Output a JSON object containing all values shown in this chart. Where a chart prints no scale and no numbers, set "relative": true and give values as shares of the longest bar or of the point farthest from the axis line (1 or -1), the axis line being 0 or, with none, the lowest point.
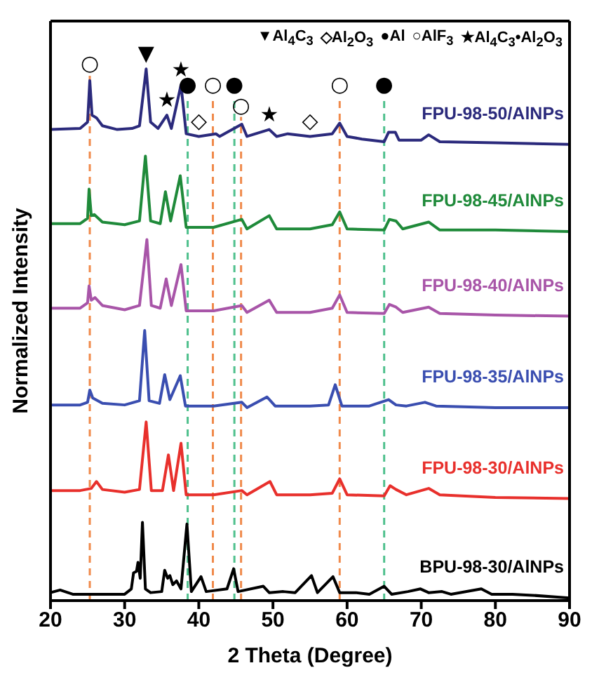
{
  "chart_data": {
    "type": "line",
    "relative": true,
    "xlabel": "2 Theta (Degree)",
    "ylabel": "Normalized Intensity",
    "xlim": [
      20,
      90
    ],
    "xticks": [
      20,
      30,
      40,
      50,
      60,
      70,
      80,
      90
    ],
    "line_style": "solid",
    "series": [
      {
        "name": "FPU-98-50/AlNPs",
        "color": "#2b2a7c",
        "x": [
          20,
          24,
          25,
          25.3,
          25.6,
          26.2,
          27,
          29,
          31,
          32,
          32.9,
          33.5,
          34.5,
          35.7,
          36.3,
          37.6,
          38.3,
          40,
          42.3,
          42.8,
          45.8,
          46.5,
          49.5,
          50.5,
          52,
          55,
          58,
          59,
          60,
          62,
          65,
          65.6,
          66.5,
          67,
          70,
          71,
          72.5,
          80,
          90
        ],
        "values": [
          0.886,
          0.888,
          0.9,
          0.978,
          0.913,
          0.908,
          0.893,
          0.886,
          0.888,
          0.893,
          1,
          0.9,
          0.888,
          0.913,
          0.888,
          0.97,
          0.878,
          0.873,
          0.878,
          0.873,
          0.896,
          0.873,
          0.886,
          0.873,
          0.878,
          0.873,
          0.878,
          0.898,
          0.873,
          0.868,
          0.863,
          0.881,
          0.881,
          0.866,
          0.866,
          0.876,
          0.863,
          0.861,
          0.858
        ]
      },
      {
        "name": "FPU-98-45/AlNPs",
        "color": "#1f8a3a",
        "x": [
          20,
          24,
          25,
          25.2,
          25.5,
          25.9,
          27,
          30,
          32,
          32.8,
          33.5,
          34.8,
          35.5,
          36.2,
          37.5,
          38.3,
          42,
          45.8,
          46.5,
          49.5,
          50.5,
          55,
          58,
          59,
          60,
          65,
          65.7,
          66.6,
          67.5,
          71,
          72.5,
          80,
          90
        ],
        "values": [
          0.709,
          0.709,
          0.719,
          0.774,
          0.724,
          0.726,
          0.712,
          0.707,
          0.714,
          0.836,
          0.714,
          0.709,
          0.769,
          0.714,
          0.799,
          0.702,
          0.702,
          0.717,
          0.699,
          0.724,
          0.699,
          0.699,
          0.707,
          0.731,
          0.699,
          0.697,
          0.717,
          0.714,
          0.699,
          0.712,
          0.697,
          0.697,
          0.694
        ]
      },
      {
        "name": "FPU-98-40/AlNPs",
        "color": "#a855a8",
        "x": [
          20,
          24,
          25,
          25.2,
          25.5,
          26,
          27,
          30,
          32,
          33,
          33.6,
          34.8,
          35.6,
          36.3,
          37.6,
          38.3,
          42,
          45.8,
          46.5,
          49.5,
          50.5,
          55,
          58,
          59,
          60,
          65,
          65.7,
          66.6,
          67.5,
          71,
          72.5,
          80,
          90
        ],
        "values": [
          0.55,
          0.55,
          0.56,
          0.592,
          0.565,
          0.57,
          0.555,
          0.547,
          0.555,
          0.679,
          0.555,
          0.55,
          0.605,
          0.555,
          0.632,
          0.545,
          0.545,
          0.555,
          0.542,
          0.565,
          0.542,
          0.542,
          0.55,
          0.575,
          0.542,
          0.54,
          0.557,
          0.552,
          0.542,
          0.552,
          0.54,
          0.537,
          0.535
        ]
      },
      {
        "name": "FPU-98-35/AlNPs",
        "color": "#3a4eb0",
        "x": [
          20,
          24,
          25,
          25.3,
          25.7,
          27,
          30,
          32,
          32.7,
          33.3,
          34.7,
          35.4,
          36.1,
          37.5,
          38.2,
          42,
          45.8,
          46.5,
          49.2,
          50.3,
          55,
          57.5,
          58.4,
          59.3,
          63,
          65.6,
          66.6,
          68,
          70.5,
          72,
          80,
          90
        ],
        "values": [
          0.368,
          0.368,
          0.373,
          0.396,
          0.381,
          0.371,
          0.368,
          0.376,
          0.508,
          0.376,
          0.371,
          0.425,
          0.378,
          0.423,
          0.366,
          0.366,
          0.373,
          0.363,
          0.383,
          0.366,
          0.366,
          0.368,
          0.406,
          0.366,
          0.366,
          0.378,
          0.368,
          0.366,
          0.373,
          0.366,
          0.363,
          0.363
        ]
      },
      {
        "name": "FPU-98-30/AlNPs",
        "color": "#e8302c",
        "x": [
          20,
          24,
          25.5,
          26.2,
          27,
          30,
          32,
          32.9,
          33.6,
          35.1,
          35.9,
          36.6,
          37.6,
          38.3,
          42,
          45.8,
          46.5,
          49.6,
          50.5,
          55,
          58,
          59,
          60,
          65,
          65.8,
          66.6,
          68,
          71,
          72.5,
          80,
          90
        ],
        "values": [
          0.207,
          0.207,
          0.211,
          0.224,
          0.209,
          0.204,
          0.209,
          0.336,
          0.207,
          0.207,
          0.274,
          0.207,
          0.296,
          0.199,
          0.199,
          0.207,
          0.199,
          0.224,
          0.199,
          0.199,
          0.202,
          0.229,
          0.199,
          0.197,
          0.216,
          0.209,
          0.199,
          0.211,
          0.199,
          0.194,
          0.192
        ]
      },
      {
        "name": "BPU-98-30/AlNPs",
        "color": "#000000",
        "x": [
          20,
          21.3,
          23,
          30,
          30.9,
          31.2,
          31.6,
          31.8,
          32.1,
          32.4,
          32.8,
          33.5,
          35,
          35.4,
          35.8,
          36.1,
          36.5,
          37,
          37.6,
          38.4,
          39,
          40.3,
          41,
          43.8,
          44.7,
          45.3,
          48.7,
          49.5,
          51.4,
          53,
          55.2,
          56,
          58.1,
          59,
          61.2,
          63,
          65,
          66,
          68.2,
          69.9,
          71,
          72.8,
          74,
          78.1,
          79.5,
          82.3,
          85,
          90
        ],
        "values": [
          0.015,
          0.02,
          0.012,
          0.012,
          0.022,
          0.052,
          0.055,
          0.072,
          0.042,
          0.147,
          0.022,
          0.015,
          0.017,
          0.057,
          0.042,
          0.047,
          0.03,
          0.037,
          0.022,
          0.144,
          0.017,
          0.045,
          0.017,
          0.022,
          0.06,
          0.017,
          0.027,
          0.015,
          0.017,
          0.015,
          0.047,
          0.015,
          0.045,
          0.015,
          0.015,
          0.012,
          0.027,
          0.012,
          0.017,
          0.022,
          0.015,
          0.017,
          0.012,
          0.022,
          0.012,
          0.012,
          0.01,
          0.005
        ]
      }
    ],
    "ref_lines": [
      {
        "axis": "x",
        "value": 25.3,
        "label": "○",
        "color": "#f08a4b",
        "line_style": "dashed"
      },
      {
        "axis": "x",
        "value": 38.5,
        "label": "●",
        "color": "#4fc08d",
        "line_style": "dashed"
      },
      {
        "axis": "x",
        "value": 41.9,
        "label": "○",
        "color": "#f08a4b",
        "line_style": "dashed"
      },
      {
        "axis": "x",
        "value": 44.8,
        "label": "●",
        "color": "#4fc08d",
        "line_style": "dashed"
      },
      {
        "axis": "x",
        "value": 45.7,
        "label": "○",
        "color": "#f08a4b",
        "line_style": "dashed"
      },
      {
        "axis": "x",
        "value": 59.0,
        "label": "○",
        "color": "#f08a4b",
        "line_style": "dashed"
      },
      {
        "axis": "x",
        "value": 65.0,
        "label": "●",
        "color": "#4fc08d",
        "line_style": "dashed"
      }
    ],
    "annotations": [
      "▼Al$_{4}$C$_{3}$",
      "◇Al$_{2}$O$_{3}$",
      "●Al",
      "○AlF$_{3}$",
      "★Al$_{4}$C$_{3}$•Al$_{2}$O$_{3}$",
      {
        "text": "▼",
        "x": 32.9,
        "y": 1
      },
      {
        "text": "★",
        "x": 35.7,
        "y": 0.913
      },
      {
        "text": "★",
        "x": 37.6,
        "y": 0.97
      },
      {
        "text": "◇",
        "x": 40,
        "y": 0.873
      },
      {
        "text": "★",
        "x": 49.5,
        "y": 0.886
      },
      {
        "text": "◇",
        "x": 55,
        "y": 0.873
      }
    ]
  }
}
